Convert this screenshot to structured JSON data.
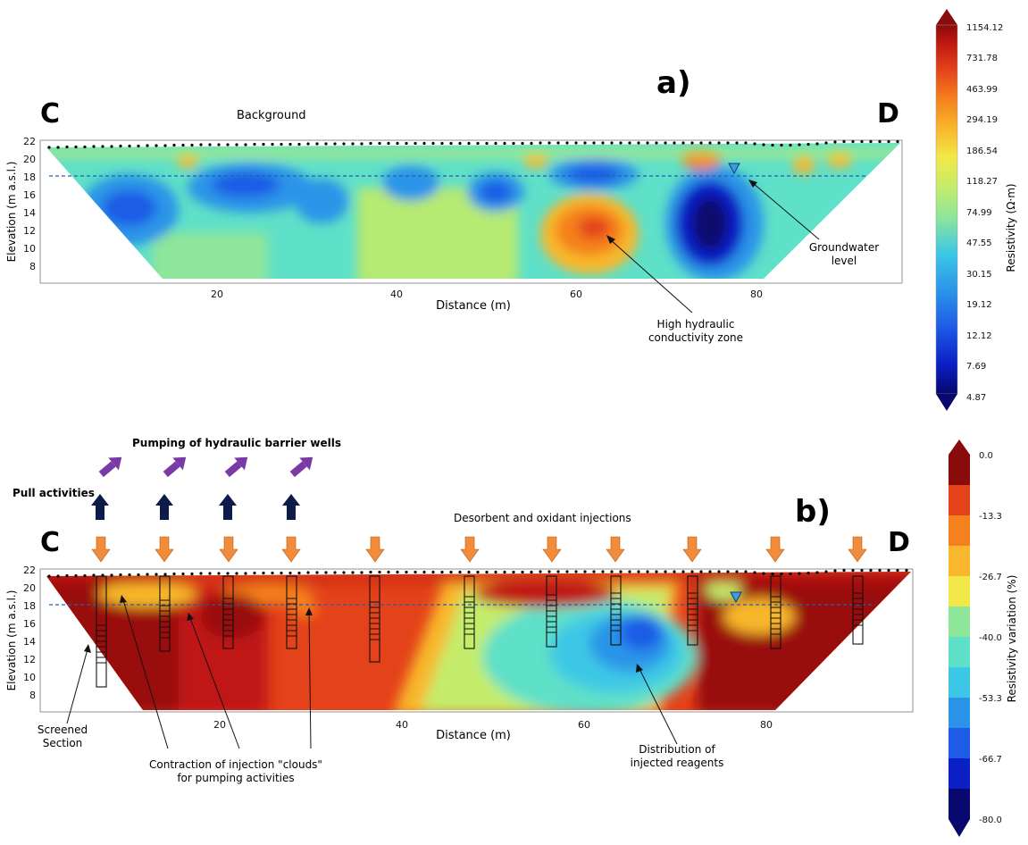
{
  "panel_a": {
    "letter": "a)",
    "left_label": "C",
    "right_label": "D",
    "section_title": "Background",
    "ylabel": "Elevation (m a.s.l.)",
    "xlabel": "Distance (m)",
    "annotations": {
      "groundwater_line1": "Groundwater",
      "groundwater_line2": "level",
      "hc_line1": "High hydraulic",
      "hc_line2": "conductivity zone"
    }
  },
  "panel_b": {
    "letter": "b)",
    "left_label": "C",
    "right_label": "D",
    "ylabel": "Elevation (m a.s.l.)",
    "xlabel": "Distance (m)",
    "annotations": {
      "pumping": "Pumping of hydraulic barrier wells",
      "pull": "Pull activities",
      "injections": "Desorbent and oxidant injections",
      "screened_line1": "Screened",
      "screened_line2": "Section",
      "contraction_line1": "Contraction of injection \"clouds\"",
      "contraction_line2": "for pumping activities",
      "distribution_line1": "Distribution of",
      "distribution_line2": "injected reagents"
    }
  },
  "axes": {
    "x_ticks": [
      "20",
      "40",
      "60",
      "80"
    ],
    "y_ticks": [
      "22",
      "20",
      "18",
      "16",
      "14",
      "12",
      "10",
      "8"
    ]
  },
  "colorbar_a": {
    "label": "Resistivity (Ω·m)",
    "ticks": [
      "1154.12",
      "731.78",
      "463.99",
      "294.19",
      "186.54",
      "118.27",
      "74.99",
      "47.55",
      "30.15",
      "19.12",
      "12.12",
      "7.69",
      "4.87"
    ]
  },
  "colorbar_b": {
    "label": "Resistivity variation (%)",
    "ticks": [
      "0.0",
      "-13.3",
      "-26.7",
      "-40.0",
      "-53.3",
      "-66.7",
      "-80.0"
    ]
  },
  "colors": {
    "scale": [
      "#08086e",
      "#0a1fc4",
      "#1e5be6",
      "#2b94e8",
      "#3cc7e6",
      "#5fe0c8",
      "#8ee69a",
      "#c4ec6a",
      "#f3e84a",
      "#f8b72c",
      "#f4801e",
      "#e4421a",
      "#c01812",
      "#8a0b0b"
    ],
    "groundwater_line": "#2a5ea8",
    "pump_arrow": "#7a3aa6",
    "pull_arrow": "#0d1b4a",
    "injection_arrow": "#f28c3a"
  }
}
